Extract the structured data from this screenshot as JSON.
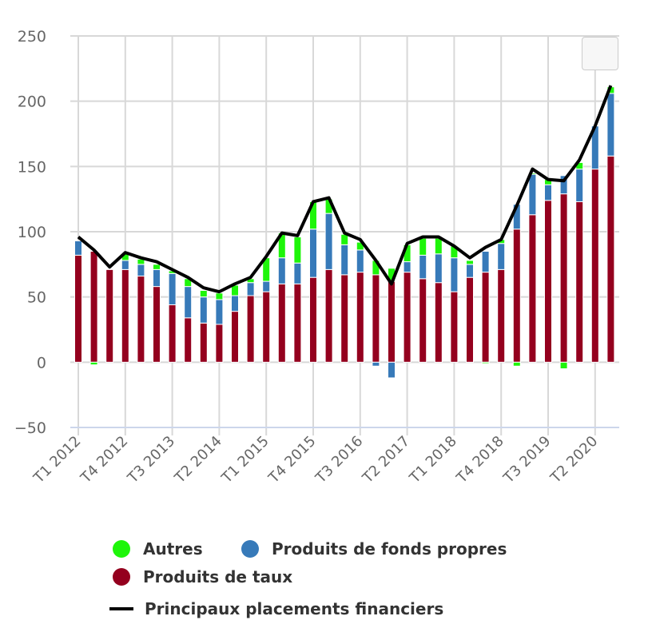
{
  "chart_data": {
    "type": "bar",
    "stacked": true,
    "categories": [
      "T1 2012",
      "T2 2012",
      "T3 2012",
      "T4 2012",
      "T1 2013",
      "T2 2013",
      "T3 2013",
      "T4 2013",
      "T1 2014",
      "T2 2014",
      "T3 2014",
      "T4 2014",
      "T1 2015",
      "T2 2015",
      "T3 2015",
      "T4 2015",
      "T1 2016",
      "T2 2016",
      "T3 2016",
      "T4 2016",
      "T1 2017",
      "T2 2017",
      "T3 2017",
      "T4 2017",
      "T1 2018",
      "T2 2018",
      "T3 2018",
      "T4 2018",
      "T1 2019",
      "T2 2019",
      "T3 2019",
      "T4 2019",
      "T1 2020",
      "T2 2020",
      "T3 2020"
    ],
    "tick_labels": [
      "T1 2012",
      "T4 2012",
      "T3 2013",
      "T2 2014",
      "T1 2015",
      "T4 2015",
      "T3 2016",
      "T2 2017",
      "T1 2018",
      "T4 2018",
      "T3 2019",
      "T2 2020"
    ],
    "series": [
      {
        "name": "Produits de taux",
        "type": "bar",
        "color": "#94001e",
        "values": [
          82,
          85,
          71,
          71,
          66,
          58,
          44,
          34,
          30,
          29,
          39,
          51,
          54,
          60,
          60,
          65,
          71,
          67,
          69,
          67,
          62,
          69,
          64,
          61,
          54,
          65,
          69,
          71,
          102,
          113,
          124,
          129,
          123,
          148,
          158
        ]
      },
      {
        "name": "Produits de fonds propres",
        "type": "bar",
        "color": "#377ab9",
        "values": [
          11,
          0,
          0,
          7,
          9,
          13,
          24,
          24,
          20,
          19,
          12,
          10,
          8,
          20,
          16,
          37,
          43,
          23,
          17,
          -3,
          -12,
          8,
          18,
          22,
          26,
          10,
          16,
          20,
          19,
          31,
          12,
          14,
          25,
          33,
          48
        ]
      },
      {
        "name": "Autres",
        "type": "bar",
        "color": "#1ef50a",
        "values": [
          0,
          -2,
          0,
          5,
          4,
          4,
          2,
          6,
          5,
          5,
          8,
          3,
          18,
          19,
          20,
          21,
          11,
          8,
          6,
          11,
          10,
          13,
          13,
          12,
          9,
          3,
          -1,
          3,
          -3,
          1,
          4,
          -5,
          5,
          0,
          5
        ]
      },
      {
        "name": "Principaux placements financiers",
        "type": "line",
        "color": "#000000",
        "values": [
          96,
          86,
          73,
          84,
          80,
          77,
          71,
          65,
          57,
          54,
          60,
          65,
          81,
          99,
          97,
          123,
          126,
          99,
          94,
          78,
          60,
          91,
          96,
          96,
          89,
          80,
          88,
          94,
          120,
          148,
          140,
          139,
          155,
          181,
          212
        ]
      }
    ],
    "ylim": [
      -50,
      250
    ],
    "yticks": [
      "−50",
      "0",
      "50",
      "100",
      "150",
      "200",
      "250"
    ],
    "grid": true,
    "legend_placement": "bottom"
  },
  "legend": {
    "items": [
      "Autres",
      "Produits de fonds propres",
      "Produits de taux",
      "Principaux placements financiers"
    ]
  },
  "colors": {
    "grid": "#d8d8d8",
    "axis": "#ccd6eb",
    "label": "#666666"
  }
}
